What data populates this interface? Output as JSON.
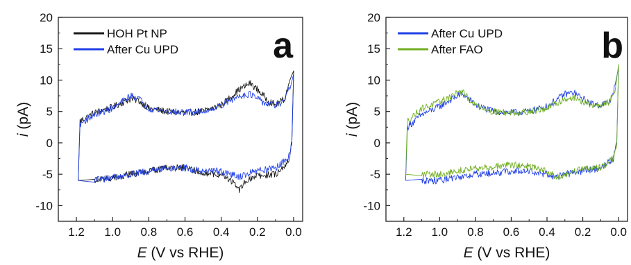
{
  "chart_data": [
    {
      "type": "line",
      "panel_label": "a",
      "xlabel_var": "E",
      "xlabel_rest": " (V vs RHE)",
      "ylabel_var": "i",
      "ylabel_rest": " (pA)",
      "xlim": [
        1.3,
        -0.05
      ],
      "ylim": [
        -12.5,
        20
      ],
      "x_ticks": [
        1.2,
        1.0,
        0.8,
        0.6,
        0.4,
        0.2,
        0.0
      ],
      "x_tick_labels": [
        "1.2",
        "1.0",
        "0.8",
        "0.6",
        "0.4",
        "0.2",
        "0.0"
      ],
      "y_ticks": [
        20,
        15,
        10,
        5,
        0,
        -5,
        -10
      ],
      "y_tick_labels": [
        "20",
        "15",
        "10",
        "5",
        "0",
        "-5",
        "-10"
      ],
      "grid": false,
      "legend_position": "top-left",
      "series": [
        {
          "name": "HOH Pt NP",
          "color": "#1a1a1a",
          "anodic": [
            [
              1.19,
              -6
            ],
            [
              1.18,
              3.5
            ],
            [
              1.1,
              4.8
            ],
            [
              1.0,
              5.7
            ],
            [
              0.9,
              7.0
            ],
            [
              0.86,
              6.8
            ],
            [
              0.8,
              5.5
            ],
            [
              0.7,
              5.0
            ],
            [
              0.6,
              4.8
            ],
            [
              0.5,
              5.0
            ],
            [
              0.4,
              6.0
            ],
            [
              0.3,
              8.5
            ],
            [
              0.24,
              9.5
            ],
            [
              0.2,
              8.5
            ],
            [
              0.15,
              7.0
            ],
            [
              0.1,
              6.0
            ],
            [
              0.05,
              7.0
            ],
            [
              0.02,
              10.0
            ],
            [
              0.0,
              11.5
            ]
          ],
          "cathodic": [
            [
              0.0,
              11.5
            ],
            [
              0.01,
              0.0
            ],
            [
              0.03,
              -3.0
            ],
            [
              0.1,
              -5.0
            ],
            [
              0.2,
              -5.3
            ],
            [
              0.26,
              -6.0
            ],
            [
              0.3,
              -7.5
            ],
            [
              0.35,
              -6.0
            ],
            [
              0.4,
              -5.0
            ],
            [
              0.5,
              -4.8
            ],
            [
              0.6,
              -4.0
            ],
            [
              0.7,
              -4.0
            ],
            [
              0.8,
              -4.5
            ],
            [
              0.9,
              -5.0
            ],
            [
              1.0,
              -5.5
            ],
            [
              1.1,
              -6.0
            ],
            [
              1.19,
              -6.0
            ]
          ]
        },
        {
          "name": "After Cu UPD",
          "color": "#1f3fe6",
          "anodic": [
            [
              1.19,
              -6
            ],
            [
              1.18,
              3.0
            ],
            [
              1.1,
              4.5
            ],
            [
              1.0,
              5.5
            ],
            [
              0.9,
              7.5
            ],
            [
              0.86,
              7.2
            ],
            [
              0.8,
              5.5
            ],
            [
              0.7,
              5.0
            ],
            [
              0.6,
              4.8
            ],
            [
              0.5,
              5.0
            ],
            [
              0.4,
              6.0
            ],
            [
              0.3,
              7.5
            ],
            [
              0.24,
              7.8
            ],
            [
              0.2,
              7.0
            ],
            [
              0.15,
              6.2
            ],
            [
              0.1,
              6.0
            ],
            [
              0.05,
              6.5
            ],
            [
              0.02,
              9.0
            ],
            [
              0.0,
              11.0
            ]
          ],
          "cathodic": [
            [
              0.0,
              11.0
            ],
            [
              0.01,
              0.0
            ],
            [
              0.03,
              -2.5
            ],
            [
              0.1,
              -4.0
            ],
            [
              0.2,
              -4.5
            ],
            [
              0.26,
              -5.0
            ],
            [
              0.3,
              -5.5
            ],
            [
              0.35,
              -5.0
            ],
            [
              0.4,
              -4.5
            ],
            [
              0.5,
              -4.5
            ],
            [
              0.6,
              -4.0
            ],
            [
              0.7,
              -4.0
            ],
            [
              0.8,
              -4.5
            ],
            [
              0.9,
              -5.0
            ],
            [
              1.0,
              -5.5
            ],
            [
              1.1,
              -6.0
            ],
            [
              1.19,
              -6.0
            ]
          ]
        }
      ]
    },
    {
      "type": "line",
      "panel_label": "b",
      "xlabel_var": "E",
      "xlabel_rest": " (V vs RHE)",
      "ylabel_var": "i",
      "ylabel_rest": " (pA)",
      "xlim": [
        1.3,
        -0.05
      ],
      "ylim": [
        -12.5,
        20
      ],
      "x_ticks": [
        1.2,
        1.0,
        0.8,
        0.6,
        0.4,
        0.2,
        0.0
      ],
      "x_tick_labels": [
        "1.2",
        "1.0",
        "0.8",
        "0.6",
        "0.4",
        "0.2",
        "0.0"
      ],
      "y_ticks": [
        20,
        15,
        10,
        5,
        0,
        -5,
        -10
      ],
      "y_tick_labels": [
        "20",
        "15",
        "10",
        "5",
        "0",
        "-5",
        "-10"
      ],
      "grid": false,
      "legend_position": "top-left",
      "series": [
        {
          "name": "After Cu UPD",
          "color": "#1f3fe6",
          "anodic": [
            [
              1.19,
              -6
            ],
            [
              1.18,
              2.5
            ],
            [
              1.1,
              4.5
            ],
            [
              1.0,
              5.8
            ],
            [
              0.9,
              7.5
            ],
            [
              0.87,
              7.8
            ],
            [
              0.8,
              6.0
            ],
            [
              0.7,
              5.0
            ],
            [
              0.6,
              4.8
            ],
            [
              0.5,
              5.0
            ],
            [
              0.4,
              5.8
            ],
            [
              0.3,
              7.8
            ],
            [
              0.25,
              8.0
            ],
            [
              0.2,
              7.0
            ],
            [
              0.15,
              6.2
            ],
            [
              0.1,
              6.0
            ],
            [
              0.05,
              6.5
            ],
            [
              0.02,
              9.0
            ],
            [
              0.0,
              12.0
            ]
          ],
          "cathodic": [
            [
              0.0,
              12.0
            ],
            [
              0.01,
              0.0
            ],
            [
              0.03,
              -2.5
            ],
            [
              0.1,
              -4.0
            ],
            [
              0.2,
              -4.5
            ],
            [
              0.3,
              -5.0
            ],
            [
              0.35,
              -5.5
            ],
            [
              0.4,
              -5.0
            ],
            [
              0.5,
              -4.5
            ],
            [
              0.6,
              -4.5
            ],
            [
              0.7,
              -4.8
            ],
            [
              0.8,
              -5.0
            ],
            [
              0.9,
              -5.5
            ],
            [
              1.0,
              -6.0
            ],
            [
              1.1,
              -6.0
            ],
            [
              1.19,
              -6.0
            ]
          ]
        },
        {
          "name": "After FAO",
          "color": "#6fae1f",
          "anodic": [
            [
              1.19,
              -5
            ],
            [
              1.18,
              3.5
            ],
            [
              1.1,
              5.5
            ],
            [
              1.0,
              6.5
            ],
            [
              0.9,
              8.0
            ],
            [
              0.87,
              8.0
            ],
            [
              0.8,
              6.0
            ],
            [
              0.7,
              5.0
            ],
            [
              0.6,
              4.8
            ],
            [
              0.5,
              5.0
            ],
            [
              0.4,
              5.5
            ],
            [
              0.3,
              7.0
            ],
            [
              0.25,
              7.2
            ],
            [
              0.2,
              6.5
            ],
            [
              0.15,
              6.0
            ],
            [
              0.1,
              6.0
            ],
            [
              0.05,
              6.5
            ],
            [
              0.02,
              8.5
            ],
            [
              0.0,
              12.5
            ]
          ],
          "cathodic": [
            [
              0.0,
              12.5
            ],
            [
              0.01,
              0.0
            ],
            [
              0.03,
              -2.5
            ],
            [
              0.1,
              -4.0
            ],
            [
              0.2,
              -4.2
            ],
            [
              0.3,
              -5.0
            ],
            [
              0.35,
              -5.5
            ],
            [
              0.4,
              -4.5
            ],
            [
              0.5,
              -3.8
            ],
            [
              0.6,
              -3.5
            ],
            [
              0.7,
              -3.8
            ],
            [
              0.8,
              -4.0
            ],
            [
              0.9,
              -4.5
            ],
            [
              1.0,
              -5.0
            ],
            [
              1.1,
              -5.0
            ],
            [
              1.19,
              -5.0
            ]
          ]
        }
      ]
    }
  ]
}
